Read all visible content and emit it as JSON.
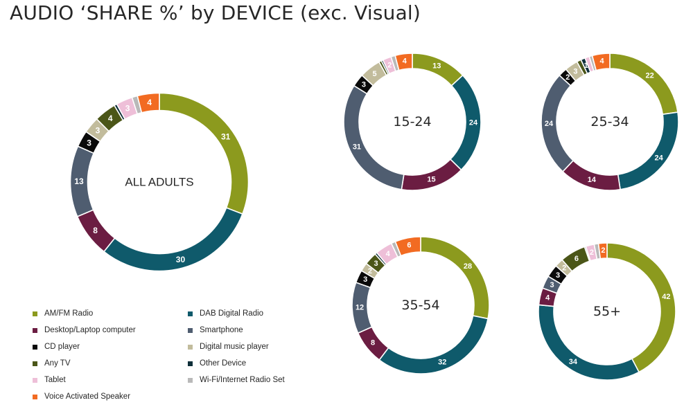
{
  "title": "AUDIO ‘SHARE %’ by DEVICE (exc. Visual)",
  "categories": [
    {
      "name": "AM/FM Radio",
      "color": "#8c9a1e"
    },
    {
      "name": "DAB Digital Radio",
      "color": "#0f5a6b"
    },
    {
      "name": "Desktop/Laptop computer",
      "color": "#6b1d42"
    },
    {
      "name": "Smartphone",
      "color": "#4f5d70"
    },
    {
      "name": "CD player",
      "color": "#0a0a0a"
    },
    {
      "name": "Digital music player",
      "color": "#c2bc9c"
    },
    {
      "name": "Any TV",
      "color": "#4b5618"
    },
    {
      "name": "Other Device",
      "color": "#0f2f3a"
    },
    {
      "name": "Tablet",
      "color": "#eebfd8"
    },
    {
      "name": "Wi-Fi/Internet Radio Set",
      "color": "#b9b9b9"
    },
    {
      "name": "Voice Activated Speaker",
      "color": "#f26b22"
    }
  ],
  "chart_data": [
    {
      "type": "pie",
      "title": "ALL ADULTS",
      "donut": true,
      "categories": [
        "AM/FM Radio",
        "DAB Digital Radio",
        "Desktop/Laptop computer",
        "Smartphone",
        "CD player",
        "Digital music player",
        "Any TV",
        "Other Device",
        "Tablet",
        "Wi-Fi/Internet Radio Set",
        "Voice Activated Speaker"
      ],
      "values": [
        31,
        30,
        8,
        13,
        3,
        3,
        4,
        0.5,
        3,
        1,
        4
      ],
      "labels": [
        "31",
        "30",
        "8",
        "13",
        "3",
        "3",
        "4",
        "",
        "3",
        "",
        "4"
      ]
    },
    {
      "type": "pie",
      "title": "15-24",
      "donut": true,
      "categories": [
        "AM/FM Radio",
        "DAB Digital Radio",
        "Desktop/Laptop computer",
        "Smartphone",
        "CD player",
        "Digital music player",
        "Any TV",
        "Other Device",
        "Tablet",
        "Wi-Fi/Internet Radio Set",
        "Voice Activated Speaker"
      ],
      "values": [
        13,
        24,
        15,
        31,
        3,
        5,
        0.6,
        0.4,
        2,
        1,
        4
      ],
      "labels": [
        "13",
        "24",
        "15",
        "31",
        "3",
        "5",
        "",
        "",
        "2",
        "",
        "4"
      ]
    },
    {
      "type": "pie",
      "title": "25-34",
      "donut": true,
      "categories": [
        "AM/FM Radio",
        "DAB Digital Radio",
        "Desktop/Laptop computer",
        "Smartphone",
        "CD player",
        "Digital music player",
        "Any TV",
        "Other Device",
        "Tablet",
        "Wi-Fi/Internet Radio Set",
        "Voice Activated Speaker"
      ],
      "values": [
        22,
        24,
        14,
        24,
        2,
        3,
        1,
        1,
        1,
        0.7,
        4
      ],
      "labels": [
        "22",
        "24",
        "14",
        "24",
        "2",
        "3",
        "",
        "1",
        "",
        "",
        "4"
      ]
    },
    {
      "type": "pie",
      "title": "35-54",
      "donut": true,
      "categories": [
        "AM/FM Radio",
        "DAB Digital Radio",
        "Desktop/Laptop computer",
        "Smartphone",
        "CD player",
        "Digital music player",
        "Any TV",
        "Other Device",
        "Tablet",
        "Wi-Fi/Internet Radio Set",
        "Voice Activated Speaker"
      ],
      "values": [
        28,
        32,
        8,
        12,
        3,
        2,
        3,
        0.5,
        4,
        1,
        6
      ],
      "labels": [
        "28",
        "32",
        "8",
        "12",
        "3",
        "2",
        "3",
        "",
        "4",
        "",
        "6"
      ]
    },
    {
      "type": "pie",
      "title": "55+",
      "donut": true,
      "categories": [
        "AM/FM Radio",
        "DAB Digital Radio",
        "Desktop/Laptop computer",
        "Smartphone",
        "CD player",
        "Digital music player",
        "Any TV",
        "Other Device",
        "Tablet",
        "Wi-Fi/Internet Radio Set",
        "Voice Activated Speaker"
      ],
      "values": [
        42,
        34,
        4,
        3,
        3,
        2,
        6,
        0.3,
        2,
        1,
        2
      ],
      "labels": [
        "42",
        "34",
        "4",
        "3",
        "3",
        "2",
        "6",
        "",
        "2",
        "",
        "2"
      ]
    }
  ]
}
